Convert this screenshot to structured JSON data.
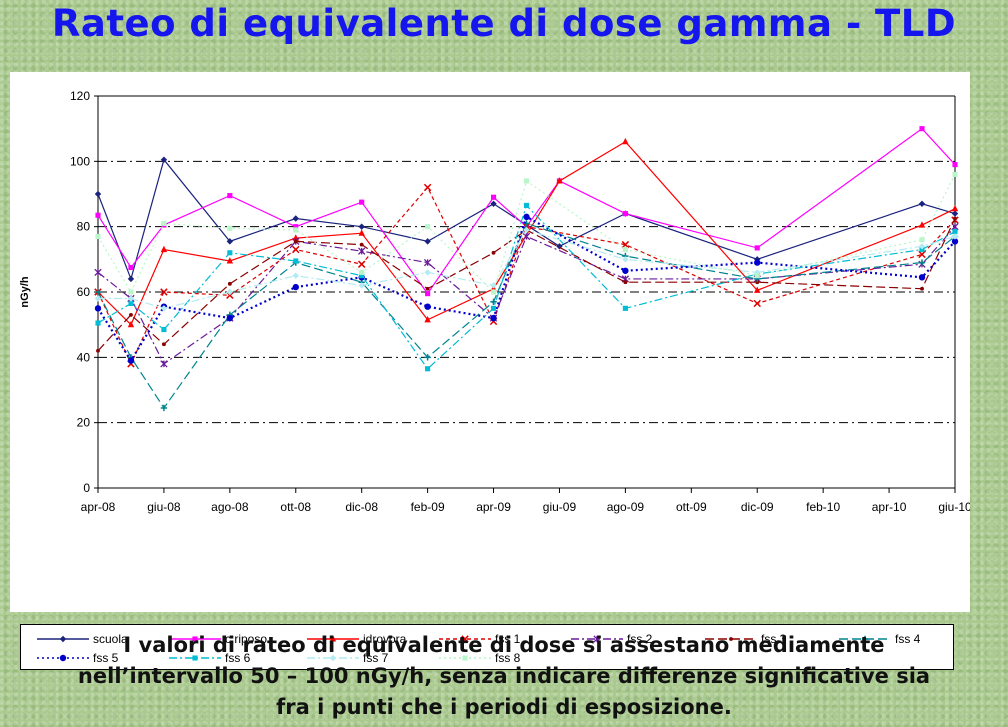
{
  "slide": {
    "title": "Rateo di equivalente di dose gamma - TLD",
    "caption_lines": [
      "I valori di rateo di equivalente di dose si assestano mediamente",
      "nell’intervallo 50 – 100 nGy/h, senza indicare differenze significative sia",
      "fra i punti che i periodi di esposizione."
    ]
  },
  "chart_data": {
    "type": "line",
    "title": "",
    "xlabel": "",
    "ylabel": "nGy/h",
    "ylim": [
      0,
      120
    ],
    "yticks": [
      0,
      20,
      40,
      60,
      80,
      100,
      120
    ],
    "grid": "horizontal dashed",
    "legend_position": "bottom",
    "xlim_months": [
      "apr-08",
      "giu-10"
    ],
    "x_tick_labels": [
      "apr-08",
      "giu-08",
      "ago-08",
      "ott-08",
      "dic-08",
      "feb-09",
      "apr-09",
      "giu-09",
      "ago-09",
      "ott-09",
      "dic-09",
      "feb-10",
      "apr-10",
      "giu-10"
    ],
    "series": [
      {
        "name": "scuola",
        "color": "#1a237e",
        "dash": "solid",
        "marker": "diamond",
        "x": [
          "apr-08",
          "mag-08",
          "giu-08",
          "ago-08",
          "ott-08",
          "dic-08",
          "feb-09",
          "apr-09",
          "giu-09",
          "ago-09",
          "dic-09",
          "giu-10",
          "giu-10"
        ],
        "y": [
          90,
          64,
          100.5,
          75.5,
          82.5,
          80,
          75.5,
          87,
          74,
          84,
          70,
          87,
          84
        ]
      },
      {
        "name": "c.riposo",
        "color": "#ff00ff",
        "dash": "solid",
        "marker": "square",
        "x": [
          "apr-08",
          "mag-08",
          "giu-08",
          "ago-08",
          "ott-08",
          "dic-08",
          "feb-09",
          "apr-09",
          "mag-09",
          "giu-09",
          "ago-09",
          "dic-09",
          "giu-10",
          "giu-10"
        ],
        "y": [
          83.5,
          67.5,
          80.5,
          89.5,
          80,
          87.5,
          59.5,
          89,
          80,
          94,
          84,
          73.5,
          110,
          99
        ]
      },
      {
        "name": "idrovora",
        "color": "#ff0000",
        "dash": "solid",
        "marker": "triangle",
        "x": [
          "apr-08",
          "mag-08",
          "giu-08",
          "ago-08",
          "ott-08",
          "dic-08",
          "feb-09",
          "apr-09",
          "giu-09",
          "ago-09",
          "dic-09",
          "giu-10",
          "giu-10"
        ],
        "y": [
          60,
          50,
          73,
          69.5,
          76.5,
          78,
          51.5,
          61,
          94,
          106,
          60.5,
          80.5,
          85.5
        ]
      },
      {
        "name": "fss 1",
        "color": "#dd0000",
        "dash": "short",
        "marker": "x",
        "x": [
          "apr-08",
          "mag-08",
          "giu-08",
          "ago-08",
          "ott-08",
          "dic-08",
          "feb-09",
          "apr-09",
          "mag-09",
          "ago-09",
          "dic-09",
          "giu-10",
          "giu-10"
        ],
        "y": [
          60,
          38,
          60,
          59,
          73,
          68.5,
          92,
          51,
          80,
          74.5,
          56.5,
          71.5,
          82
        ]
      },
      {
        "name": "fss 2",
        "color": "#6a1b9a",
        "dash": "dashdot",
        "marker": "star",
        "x": [
          "apr-08",
          "mag-08",
          "giu-08",
          "ago-08",
          "ott-08",
          "dic-08",
          "feb-09",
          "apr-09",
          "mag-09",
          "ago-09",
          "dic-09",
          "giu-10",
          "giu-10"
        ],
        "y": [
          66,
          58,
          38,
          52,
          75.5,
          72.5,
          69,
          52,
          77,
          64,
          64,
          68.5,
          80
        ]
      },
      {
        "name": "fss 3",
        "color": "#8b0000",
        "dash": "longdash",
        "marker": "dot",
        "x": [
          "apr-08",
          "mag-08",
          "giu-08",
          "ago-08",
          "ott-08",
          "dic-08",
          "feb-09",
          "apr-09",
          "mag-09",
          "ago-09",
          "dic-09",
          "giu-10",
          "giu-10"
        ],
        "y": [
          42,
          53,
          44,
          62.5,
          75.5,
          74.5,
          61,
          72,
          79,
          63,
          63,
          61,
          82.5
        ]
      },
      {
        "name": "fss 4",
        "color": "#00838f",
        "dash": "longdash",
        "marker": "plus",
        "x": [
          "apr-08",
          "mag-08",
          "giu-08",
          "ago-08",
          "ott-08",
          "dic-08",
          "feb-09",
          "apr-09",
          "mag-09",
          "ago-09",
          "dic-09",
          "giu-10",
          "giu-10"
        ],
        "y": [
          60,
          40,
          24.5,
          53,
          69,
          63,
          40,
          57,
          81,
          71,
          64,
          69,
          77
        ]
      },
      {
        "name": "fss 5",
        "color": "#0000cc",
        "dash": "dotted",
        "marker": "circle",
        "x": [
          "apr-08",
          "mag-08",
          "giu-08",
          "ago-08",
          "ott-08",
          "dic-08",
          "feb-09",
          "apr-09",
          "mag-09",
          "ago-09",
          "dic-09",
          "giu-10",
          "giu-10"
        ],
        "y": [
          55,
          39,
          55.5,
          52,
          61.5,
          64.5,
          55.5,
          52,
          83,
          66.5,
          69,
          64.5,
          75.5
        ]
      },
      {
        "name": "fss 6",
        "color": "#00bcd4",
        "dash": "dashdot",
        "marker": "square",
        "x": [
          "apr-08",
          "mag-08",
          "giu-08",
          "ago-08",
          "ott-08",
          "dic-08",
          "feb-09",
          "apr-09",
          "mag-09",
          "ago-09",
          "dic-09",
          "giu-10",
          "giu-10"
        ],
        "y": [
          50.5,
          56.5,
          48.5,
          72,
          69.5,
          65,
          36.5,
          55,
          86.5,
          55,
          65.5,
          73,
          78.5
        ]
      },
      {
        "name": "fss 7",
        "color": "#b2ebf2",
        "dash": "dashdot",
        "marker": "diamond",
        "x": [
          "apr-08",
          "mag-08",
          "giu-08",
          "ago-08",
          "ott-08",
          "dic-08",
          "feb-09",
          "apr-09",
          "mag-09",
          "ago-09",
          "dic-09",
          "giu-10",
          "giu-10"
        ],
        "y": [
          58,
          58,
          55,
          60,
          65,
          62,
          66,
          62,
          79,
          70,
          66,
          74,
          77
        ]
      },
      {
        "name": "fss 8",
        "color": "#b9f6ca",
        "dash": "dotted",
        "marker": "square",
        "x": [
          "apr-08",
          "mag-08",
          "giu-08",
          "ago-08",
          "ott-08",
          "dic-08",
          "feb-09",
          "apr-09",
          "mag-09",
          "ago-09",
          "dic-09",
          "giu-10",
          "giu-10"
        ],
        "y": [
          77,
          60,
          81,
          79.5,
          79,
          66,
          80,
          60,
          94,
          73,
          65,
          76,
          96
        ]
      }
    ]
  }
}
